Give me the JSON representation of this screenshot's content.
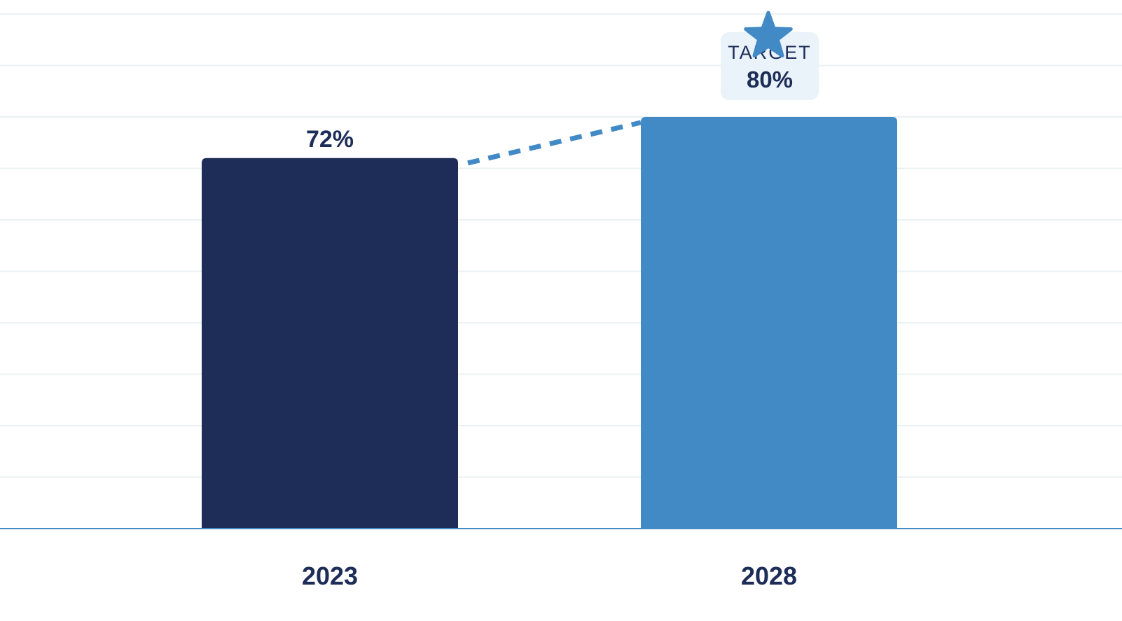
{
  "chart_data": {
    "type": "bar",
    "categories": [
      "2023",
      "2028"
    ],
    "values": [
      72,
      80
    ],
    "value_labels": [
      "72%",
      ""
    ],
    "ylim": [
      0,
      100
    ],
    "grid": true,
    "title": "",
    "xlabel": "",
    "ylabel": "",
    "target": {
      "category": "2028",
      "title": "TARGET",
      "value_label": "80%",
      "icon": "star-icon"
    },
    "trend_line": {
      "from": "2023",
      "to": "2028",
      "style": "dashed"
    },
    "colors": {
      "bar_actual": "#1d2d57",
      "bar_target": "#418ac6",
      "trend": "#418ac6",
      "text": "#1d2d57",
      "grid": "#eaf1f2",
      "axis": "#418ac6",
      "badge_bg": "#eaf2fa"
    }
  }
}
